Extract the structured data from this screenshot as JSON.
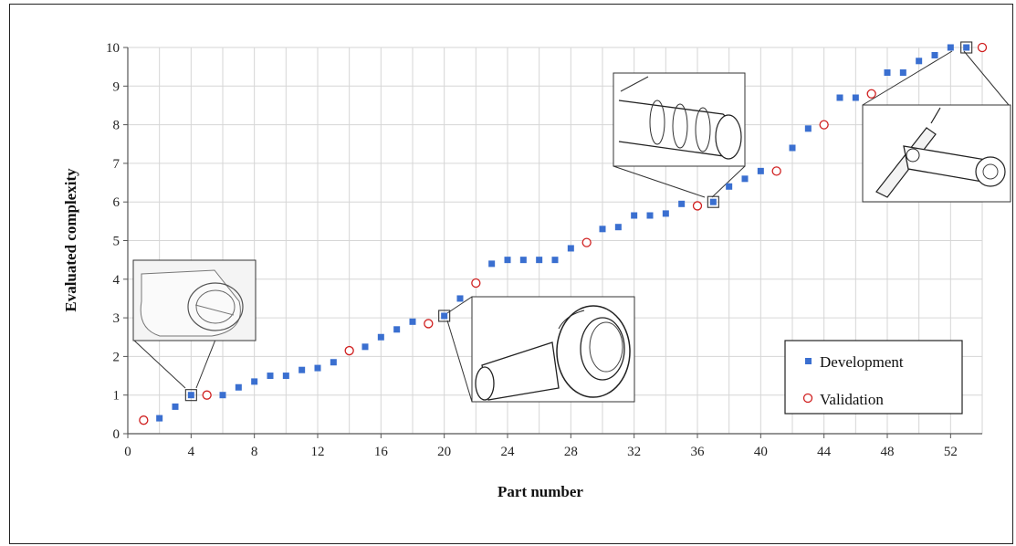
{
  "chart_data": {
    "type": "scatter",
    "title": "",
    "xlabel": "Part number",
    "ylabel": "Evaluated complexity",
    "xlim": [
      0,
      54
    ],
    "ylim": [
      0,
      10
    ],
    "x_ticks": [
      0,
      4,
      8,
      12,
      16,
      20,
      24,
      28,
      32,
      36,
      40,
      44,
      48,
      52
    ],
    "y_ticks": [
      0,
      1,
      2,
      3,
      4,
      5,
      6,
      7,
      8,
      9,
      10
    ],
    "grid": true,
    "legend_position": "bottom-right",
    "series": [
      {
        "name": "Development",
        "marker": "filled-square",
        "color": "#3a6fd0",
        "points": [
          [
            2,
            0.4
          ],
          [
            3,
            0.7
          ],
          [
            4,
            1.0
          ],
          [
            6,
            1.0
          ],
          [
            7,
            1.2
          ],
          [
            8,
            1.35
          ],
          [
            9,
            1.5
          ],
          [
            10,
            1.5
          ],
          [
            11,
            1.65
          ],
          [
            12,
            1.7
          ],
          [
            13,
            1.85
          ],
          [
            15,
            2.25
          ],
          [
            16,
            2.5
          ],
          [
            17,
            2.7
          ],
          [
            18,
            2.9
          ],
          [
            20,
            3.05
          ],
          [
            21,
            3.5
          ],
          [
            23,
            4.4
          ],
          [
            24,
            4.5
          ],
          [
            25,
            4.5
          ],
          [
            26,
            4.5
          ],
          [
            27,
            4.5
          ],
          [
            28,
            4.8
          ],
          [
            30,
            5.3
          ],
          [
            31,
            5.35
          ],
          [
            32,
            5.65
          ],
          [
            33,
            5.65
          ],
          [
            34,
            5.7
          ],
          [
            35,
            5.95
          ],
          [
            37,
            6.0
          ],
          [
            38,
            6.4
          ],
          [
            39,
            6.6
          ],
          [
            40,
            6.8
          ],
          [
            42,
            7.4
          ],
          [
            43,
            7.9
          ],
          [
            45,
            8.7
          ],
          [
            46,
            8.7
          ],
          [
            48,
            9.35
          ],
          [
            49,
            9.35
          ],
          [
            50,
            9.65
          ],
          [
            51,
            9.8
          ],
          [
            52,
            10.0
          ],
          [
            53,
            10.0
          ]
        ]
      },
      {
        "name": "Validation",
        "marker": "open-circle",
        "color": "#d02020",
        "points": [
          [
            1,
            0.35
          ],
          [
            5,
            1.0
          ],
          [
            14,
            2.15
          ],
          [
            19,
            2.85
          ],
          [
            22,
            3.9
          ],
          [
            29,
            4.95
          ],
          [
            36,
            5.9
          ],
          [
            41,
            6.8
          ],
          [
            44,
            8.0
          ],
          [
            47,
            8.8
          ],
          [
            54,
            10.0
          ]
        ]
      }
    ],
    "insets": [
      {
        "name": "part-4",
        "x": 4,
        "y": 1.0
      },
      {
        "name": "part-20",
        "x": 20,
        "y": 3.05
      },
      {
        "name": "part-37",
        "x": 37,
        "y": 6.0
      },
      {
        "name": "part-53",
        "x": 53,
        "y": 10.0
      }
    ]
  }
}
